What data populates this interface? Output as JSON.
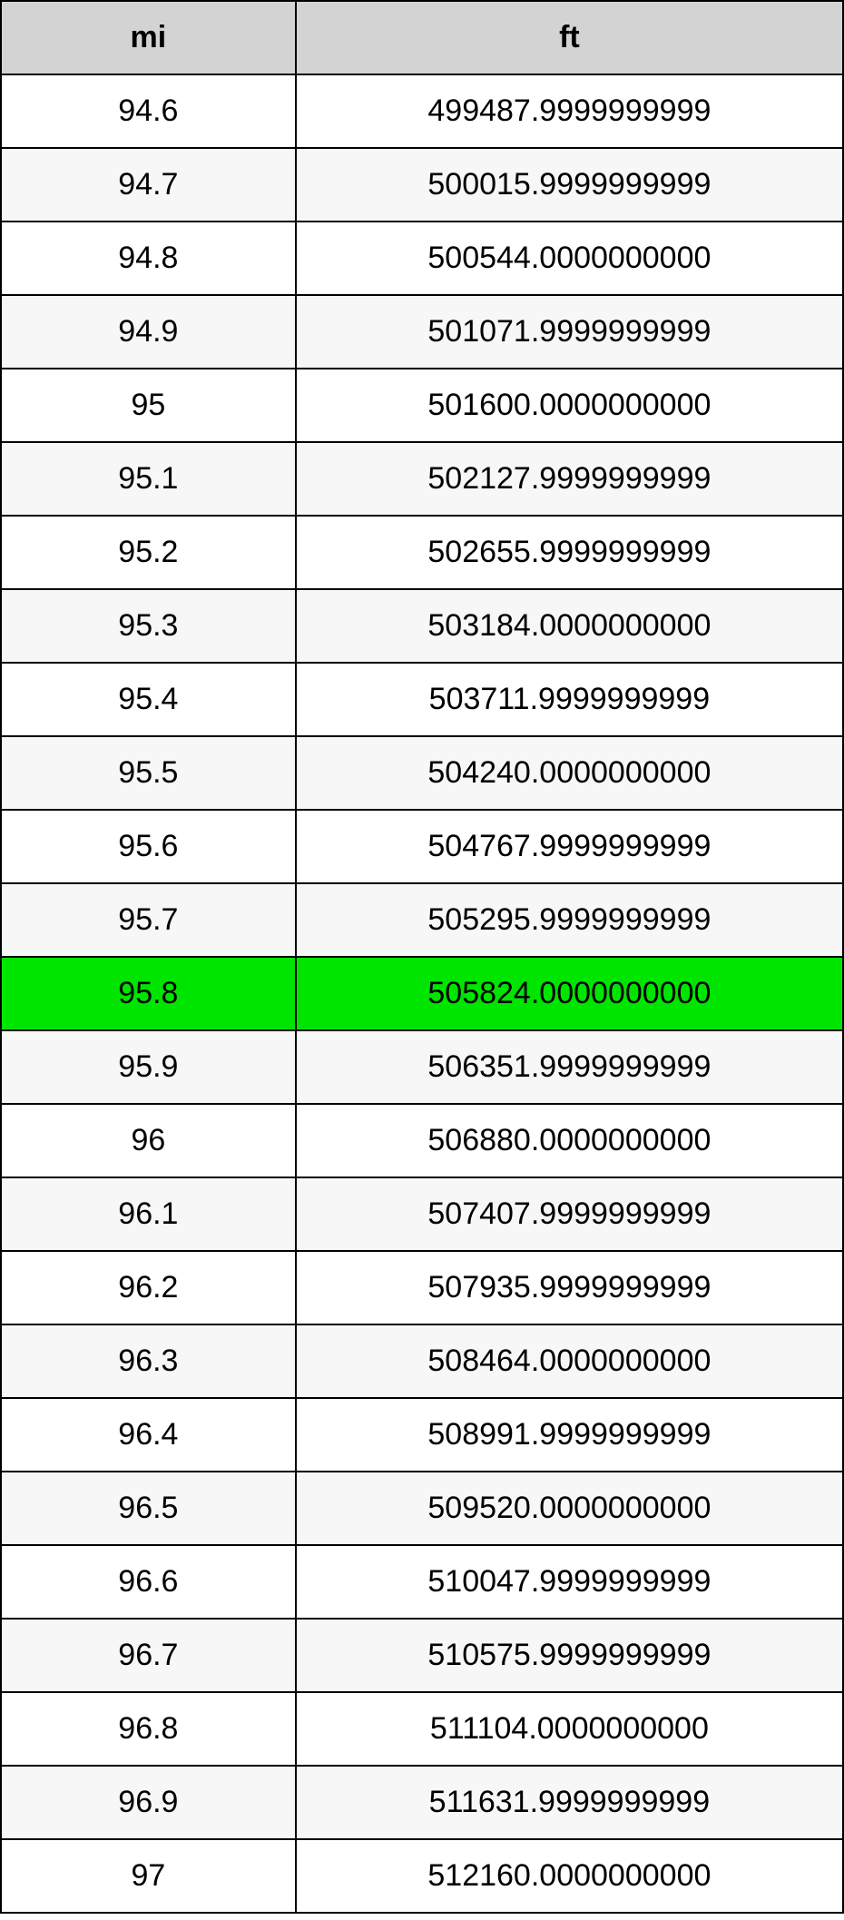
{
  "table": {
    "columns": [
      {
        "label": "mi",
        "width_pct": 35
      },
      {
        "label": "ft",
        "width_pct": 65
      }
    ],
    "header_bg_color": "#d3d3d3",
    "border_color": "#000000",
    "row_bg_odd": "#ffffff",
    "row_bg_even": "#f7f7f7",
    "highlight_bg": "#00e500",
    "font_size": 34,
    "text_color": "#000000",
    "highlighted_index": 12,
    "rows": [
      {
        "mi": "94.6",
        "ft": "499487.9999999999"
      },
      {
        "mi": "94.7",
        "ft": "500015.9999999999"
      },
      {
        "mi": "94.8",
        "ft": "500544.0000000000"
      },
      {
        "mi": "94.9",
        "ft": "501071.9999999999"
      },
      {
        "mi": "95",
        "ft": "501600.0000000000"
      },
      {
        "mi": "95.1",
        "ft": "502127.9999999999"
      },
      {
        "mi": "95.2",
        "ft": "502655.9999999999"
      },
      {
        "mi": "95.3",
        "ft": "503184.0000000000"
      },
      {
        "mi": "95.4",
        "ft": "503711.9999999999"
      },
      {
        "mi": "95.5",
        "ft": "504240.0000000000"
      },
      {
        "mi": "95.6",
        "ft": "504767.9999999999"
      },
      {
        "mi": "95.7",
        "ft": "505295.9999999999"
      },
      {
        "mi": "95.8",
        "ft": "505824.0000000000"
      },
      {
        "mi": "95.9",
        "ft": "506351.9999999999"
      },
      {
        "mi": "96",
        "ft": "506880.0000000000"
      },
      {
        "mi": "96.1",
        "ft": "507407.9999999999"
      },
      {
        "mi": "96.2",
        "ft": "507935.9999999999"
      },
      {
        "mi": "96.3",
        "ft": "508464.0000000000"
      },
      {
        "mi": "96.4",
        "ft": "508991.9999999999"
      },
      {
        "mi": "96.5",
        "ft": "509520.0000000000"
      },
      {
        "mi": "96.6",
        "ft": "510047.9999999999"
      },
      {
        "mi": "96.7",
        "ft": "510575.9999999999"
      },
      {
        "mi": "96.8",
        "ft": "511104.0000000000"
      },
      {
        "mi": "96.9",
        "ft": "511631.9999999999"
      },
      {
        "mi": "97",
        "ft": "512160.0000000000"
      }
    ]
  }
}
